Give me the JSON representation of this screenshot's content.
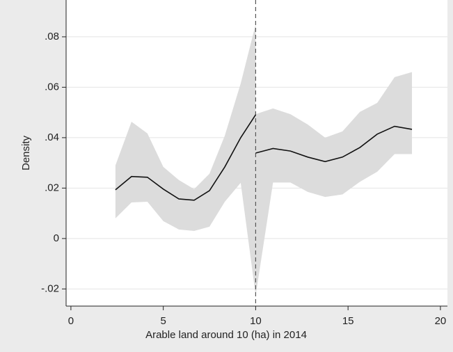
{
  "chart_data": {
    "type": "line",
    "x_label": "Arable land around 10 (ha) in 2014",
    "y_label": "Density",
    "xlim": [
      -0.26,
      20.38
    ],
    "ylim": [
      -0.0268,
      0.0946
    ],
    "xticks": [
      0,
      5,
      10,
      15,
      20
    ],
    "yticks": [
      {
        "value": -0.02,
        "label": "-.02"
      },
      0,
      {
        "value": 0.02,
        "label": ".02"
      },
      {
        "value": 0.04,
        "label": ".04"
      },
      {
        "value": 0.06,
        "label": ".06"
      },
      {
        "value": 0.08,
        "label": ".08"
      }
    ],
    "grid": true,
    "vlines": [
      10
    ],
    "band_color": "#dcdcdc",
    "series": [
      {
        "color": "#111111",
        "x": [
          2.41,
          3.28,
          4.14,
          5.0,
          5.84,
          6.67,
          7.5,
          8.33,
          9.19,
          10.0
        ],
        "values": [
          0.0193,
          0.0246,
          0.0243,
          0.0196,
          0.0157,
          0.0152,
          0.019,
          0.0284,
          0.04,
          0.0491
        ],
        "lower": [
          0.008,
          0.0143,
          0.0146,
          0.0069,
          0.0036,
          0.003,
          0.0047,
          0.0146,
          0.0221,
          -0.0226
        ],
        "upper": [
          0.029,
          0.0463,
          0.0417,
          0.0284,
          0.0232,
          0.0196,
          0.0257,
          0.0408,
          0.0615,
          0.085
        ]
      },
      {
        "color": "#111111",
        "x": [
          10.0,
          10.94,
          11.88,
          12.82,
          13.76,
          14.7,
          15.64,
          16.58,
          17.52,
          18.46
        ],
        "values": [
          0.0339,
          0.0357,
          0.0347,
          0.0323,
          0.0305,
          0.0323,
          0.0361,
          0.0414,
          0.0445,
          0.0433
        ],
        "lower": [
          -0.0226,
          0.0222,
          0.0222,
          0.0185,
          0.0165,
          0.0175,
          0.0225,
          0.0265,
          0.0335,
          0.0335
        ],
        "upper": [
          0.0493,
          0.0516,
          0.0493,
          0.0452,
          0.04,
          0.0425,
          0.0502,
          0.0538,
          0.064,
          0.066
        ]
      }
    ]
  }
}
